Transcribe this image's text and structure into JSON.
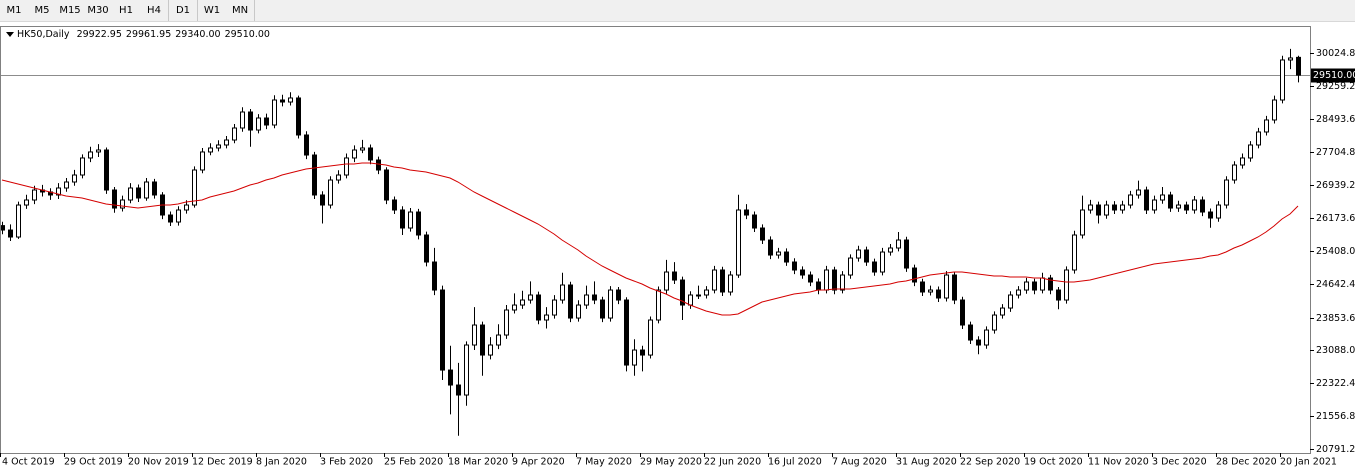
{
  "toolbar": [
    "M1",
    "M5",
    "M15",
    "M30",
    "H1",
    "H4",
    "D1",
    "W1",
    "MN"
  ],
  "chart_data": {
    "type": "candlestick",
    "title": "HK50,Daily",
    "ohlc_labels": [
      "29922.95",
      "29961.95",
      "29340.00",
      "29510.00"
    ],
    "candle_colors": {
      "up": "#ffffff",
      "down": "#000000",
      "outline": "#000000"
    },
    "categories": [
      "4 Oct 2019",
      null,
      null,
      null,
      null,
      null,
      null,
      null,
      "29 Oct 2019",
      null,
      null,
      null,
      null,
      null,
      null,
      null,
      "20 Nov 2019",
      null,
      null,
      null,
      null,
      null,
      null,
      null,
      "12 Dec 2019",
      null,
      null,
      null,
      null,
      null,
      null,
      null,
      "8 Jan 2020",
      null,
      null,
      null,
      null,
      null,
      null,
      null,
      "3 Feb 2020",
      null,
      null,
      null,
      null,
      null,
      null,
      null,
      "25 Feb 2020",
      null,
      null,
      null,
      null,
      null,
      null,
      null,
      "18 Mar 2020",
      null,
      null,
      null,
      null,
      null,
      null,
      null,
      "9 Apr 2020",
      null,
      null,
      null,
      null,
      null,
      null,
      null,
      "7 May 2020",
      null,
      null,
      null,
      null,
      null,
      null,
      null,
      "29 May 2020",
      null,
      null,
      null,
      null,
      null,
      null,
      null,
      "22 Jun 2020",
      null,
      null,
      null,
      null,
      null,
      null,
      null,
      "16 Jul 2020",
      null,
      null,
      null,
      null,
      null,
      null,
      null,
      "7 Aug 2020",
      null,
      null,
      null,
      null,
      null,
      null,
      null,
      "31 Aug 2020",
      null,
      null,
      null,
      null,
      null,
      null,
      null,
      "22 Sep 2020",
      null,
      null,
      null,
      null,
      null,
      null,
      null,
      "19 Oct 2020",
      null,
      null,
      null,
      null,
      null,
      null,
      null,
      "11 Nov 2020",
      null,
      null,
      null,
      null,
      null,
      null,
      null,
      "3 Dec 2020",
      null,
      null,
      null,
      null,
      null,
      null,
      null,
      "28 Dec 2020",
      null,
      null,
      null,
      null,
      null,
      null,
      null,
      "20 Jan 2021",
      null,
      null
    ],
    "candles": [
      [
        26000,
        26090,
        25800,
        25897
      ],
      [
        25897,
        26030,
        25640,
        25734
      ],
      [
        25734,
        26560,
        25690,
        26480
      ],
      [
        26480,
        26720,
        26390,
        26597
      ],
      [
        26597,
        26930,
        26500,
        26830
      ],
      [
        26830,
        26950,
        26680,
        26784
      ],
      [
        26784,
        26870,
        26600,
        26714
      ],
      [
        26714,
        26990,
        26620,
        26877
      ],
      [
        26877,
        27110,
        26790,
        27017
      ],
      [
        27017,
        27300,
        26930,
        27180
      ],
      [
        27180,
        27660,
        27100,
        27577
      ],
      [
        27577,
        27840,
        27480,
        27717
      ],
      [
        27717,
        27900,
        27600,
        27763
      ],
      [
        27763,
        27820,
        26740,
        26830
      ],
      [
        26830,
        26900,
        26300,
        26410
      ],
      [
        26410,
        26700,
        26330,
        26597
      ],
      [
        26597,
        26990,
        26520,
        26877
      ],
      [
        26877,
        26960,
        26550,
        26644
      ],
      [
        26644,
        27110,
        26580,
        27017
      ],
      [
        27017,
        27090,
        26630,
        26714
      ],
      [
        26714,
        26780,
        26150,
        26247
      ],
      [
        26247,
        26330,
        25990,
        26084
      ],
      [
        26084,
        26450,
        26000,
        26364
      ],
      [
        26364,
        26590,
        26280,
        26480
      ],
      [
        26480,
        27380,
        26420,
        27297
      ],
      [
        27297,
        27810,
        27220,
        27717
      ],
      [
        27717,
        27920,
        27640,
        27810
      ],
      [
        27810,
        27990,
        27730,
        27880
      ],
      [
        27880,
        28090,
        27800,
        27996
      ],
      [
        27996,
        28370,
        27920,
        28276
      ],
      [
        28276,
        28760,
        28190,
        28649
      ],
      [
        28649,
        28720,
        27840,
        28229
      ],
      [
        28229,
        28600,
        28150,
        28509
      ],
      [
        28509,
        28610,
        28250,
        28346
      ],
      [
        28346,
        29040,
        28270,
        28929
      ],
      [
        28929,
        29050,
        28780,
        28882
      ],
      [
        28882,
        29110,
        28800,
        28976
      ],
      [
        28976,
        29030,
        28030,
        28113
      ],
      [
        28113,
        28200,
        27550,
        27646
      ],
      [
        27646,
        27720,
        26620,
        26714
      ],
      [
        26714,
        26800,
        26050,
        26480
      ],
      [
        26480,
        27150,
        26400,
        27063
      ],
      [
        27063,
        27290,
        26980,
        27180
      ],
      [
        27180,
        27680,
        27100,
        27577
      ],
      [
        27577,
        27870,
        27480,
        27763
      ],
      [
        27763,
        28000,
        27690,
        27810
      ],
      [
        27810,
        27890,
        27430,
        27530
      ],
      [
        27530,
        27610,
        27200,
        27297
      ],
      [
        27297,
        27360,
        26500,
        26597
      ],
      [
        26597,
        26680,
        26270,
        26364
      ],
      [
        26364,
        26450,
        25780,
        25944
      ],
      [
        25944,
        26410,
        25860,
        26317
      ],
      [
        26317,
        26390,
        25680,
        25781
      ],
      [
        25781,
        25860,
        25050,
        25151
      ],
      [
        25151,
        25480,
        24380,
        24498
      ],
      [
        24498,
        24600,
        22400,
        22632
      ],
      [
        22632,
        23200,
        21600,
        22283
      ],
      [
        22283,
        22800,
        21100,
        22050
      ],
      [
        22050,
        23300,
        21800,
        23216
      ],
      [
        23216,
        24100,
        23100,
        23682
      ],
      [
        23682,
        23760,
        22500,
        22982
      ],
      [
        22982,
        23400,
        22880,
        23216
      ],
      [
        23216,
        23700,
        23120,
        23449
      ],
      [
        23449,
        24150,
        23360,
        24032
      ],
      [
        24032,
        24420,
        23950,
        24148
      ],
      [
        24148,
        24480,
        24060,
        24265
      ],
      [
        24265,
        24700,
        24180,
        24382
      ],
      [
        24382,
        24460,
        23700,
        23799
      ],
      [
        23799,
        24100,
        23600,
        23915
      ],
      [
        23915,
        24380,
        23830,
        24265
      ],
      [
        24265,
        24900,
        24180,
        24615
      ],
      [
        24615,
        24690,
        23750,
        23845
      ],
      [
        23845,
        24260,
        23760,
        24148
      ],
      [
        24148,
        24600,
        24060,
        24382
      ],
      [
        24382,
        24700,
        24170,
        24265
      ],
      [
        24265,
        24340,
        23750,
        23845
      ],
      [
        23845,
        24590,
        23760,
        24498
      ],
      [
        24498,
        24570,
        24170,
        24265
      ],
      [
        24265,
        24330,
        22600,
        22749
      ],
      [
        22749,
        23350,
        22500,
        23099
      ],
      [
        23099,
        23200,
        22600,
        22982
      ],
      [
        22982,
        23880,
        22900,
        23799
      ],
      [
        23799,
        24580,
        23720,
        24498
      ],
      [
        24498,
        25200,
        24410,
        24918
      ],
      [
        24918,
        25150,
        24640,
        24731
      ],
      [
        24731,
        24810,
        23800,
        24148
      ],
      [
        24148,
        24470,
        24060,
        24382
      ],
      [
        24382,
        24600,
        24290,
        24382
      ],
      [
        24382,
        24590,
        24300,
        24498
      ],
      [
        24498,
        25060,
        24420,
        24965
      ],
      [
        24965,
        25040,
        24360,
        24452
      ],
      [
        24452,
        24940,
        24370,
        24848
      ],
      [
        24848,
        26720,
        24780,
        26364
      ],
      [
        26364,
        26500,
        26150,
        26247
      ],
      [
        26247,
        26330,
        25850,
        25944
      ],
      [
        25944,
        26030,
        25570,
        25664
      ],
      [
        25664,
        25750,
        25220,
        25314
      ],
      [
        25314,
        25480,
        25230,
        25384
      ],
      [
        25384,
        25470,
        25060,
        25151
      ],
      [
        25151,
        25240,
        24870,
        24965
      ],
      [
        24965,
        25050,
        24760,
        24848
      ],
      [
        24848,
        24930,
        24590,
        24685
      ],
      [
        24685,
        24770,
        24400,
        24498
      ],
      [
        24498,
        25060,
        24420,
        24965
      ],
      [
        24965,
        25040,
        24400,
        24498
      ],
      [
        24498,
        24940,
        24420,
        24848
      ],
      [
        24848,
        25330,
        24760,
        25244
      ],
      [
        25244,
        25530,
        25160,
        25431
      ],
      [
        25431,
        25510,
        25060,
        25151
      ],
      [
        25151,
        25230,
        24830,
        24918
      ],
      [
        24918,
        25480,
        24840,
        25384
      ],
      [
        25384,
        25570,
        25300,
        25478
      ],
      [
        25478,
        25850,
        25400,
        25664
      ],
      [
        25664,
        25740,
        24920,
        25011
      ],
      [
        25011,
        25090,
        24590,
        24685
      ],
      [
        24685,
        24760,
        24360,
        24452
      ],
      [
        24452,
        24600,
        24370,
        24498
      ],
      [
        24498,
        24580,
        24220,
        24312
      ],
      [
        24312,
        24940,
        24230,
        24848
      ],
      [
        24848,
        24920,
        24170,
        24265
      ],
      [
        24265,
        24340,
        23590,
        23682
      ],
      [
        23682,
        23760,
        23240,
        23332
      ],
      [
        23332,
        23420,
        23000,
        23216
      ],
      [
        23216,
        23650,
        23130,
        23565
      ],
      [
        23565,
        24000,
        23480,
        23915
      ],
      [
        23915,
        24170,
        23830,
        24078
      ],
      [
        24078,
        24470,
        23990,
        24382
      ],
      [
        24382,
        24590,
        24300,
        24498
      ],
      [
        24498,
        24780,
        24410,
        24685
      ],
      [
        24685,
        24760,
        24400,
        24498
      ],
      [
        24498,
        24900,
        24420,
        24778
      ],
      [
        24778,
        24850,
        24400,
        24498
      ],
      [
        24498,
        24570,
        24050,
        24265
      ],
      [
        24265,
        25050,
        24180,
        24965
      ],
      [
        24965,
        25880,
        24880,
        25781
      ],
      [
        25781,
        26700,
        25700,
        26364
      ],
      [
        26364,
        26600,
        26280,
        26480
      ],
      [
        26480,
        26560,
        26050,
        26247
      ],
      [
        26247,
        26580,
        26160,
        26480
      ],
      [
        26480,
        26570,
        26270,
        26364
      ],
      [
        26364,
        26580,
        26280,
        26480
      ],
      [
        26480,
        26810,
        26400,
        26714
      ],
      [
        26714,
        27050,
        26630,
        26830
      ],
      [
        26830,
        26910,
        26270,
        26364
      ],
      [
        26364,
        26700,
        26280,
        26597
      ],
      [
        26597,
        26900,
        26510,
        26714
      ],
      [
        26714,
        26790,
        26320,
        26410
      ],
      [
        26410,
        26580,
        26320,
        26480
      ],
      [
        26480,
        26560,
        26270,
        26364
      ],
      [
        26364,
        26690,
        26280,
        26597
      ],
      [
        26597,
        26680,
        26220,
        26317
      ],
      [
        26317,
        26400,
        25950,
        26177
      ],
      [
        26177,
        26570,
        26090,
        26480
      ],
      [
        26480,
        27150,
        26400,
        27063
      ],
      [
        27063,
        27500,
        26980,
        27413
      ],
      [
        27413,
        27680,
        27330,
        27577
      ],
      [
        27577,
        27970,
        27490,
        27880
      ],
      [
        27880,
        28280,
        27800,
        28183
      ],
      [
        28183,
        28560,
        28100,
        28463
      ],
      [
        28463,
        29030,
        28380,
        28929
      ],
      [
        28929,
        29960,
        28850,
        29862
      ],
      [
        29862,
        30120,
        29650,
        29909
      ],
      [
        29922.95,
        29961.95,
        29340,
        29510
      ]
    ],
    "series": [
      {
        "color": "#d40000",
        "values": [
          27063,
          27017,
          26970,
          26923,
          26877,
          26830,
          26784,
          26737,
          26690,
          26667,
          26644,
          26597,
          26550,
          26504,
          26480,
          26457,
          26434,
          26410,
          26434,
          26457,
          26480,
          26480,
          26504,
          26550,
          26574,
          26597,
          26667,
          26714,
          26760,
          26807,
          26877,
          26947,
          26993,
          27063,
          27110,
          27180,
          27227,
          27273,
          27320,
          27343,
          27367,
          27390,
          27413,
          27436,
          27436,
          27460,
          27460,
          27436,
          27413,
          27367,
          27343,
          27297,
          27273,
          27250,
          27203,
          27157,
          27110,
          27017,
          26900,
          26784,
          26690,
          26597,
          26504,
          26410,
          26317,
          26224,
          26131,
          26037,
          25921,
          25804,
          25664,
          25548,
          25431,
          25291,
          25174,
          25058,
          24965,
          24871,
          24778,
          24708,
          24638,
          24545,
          24475,
          24405,
          24312,
          24242,
          24148,
          24078,
          24009,
          23962,
          23915,
          23915,
          23939,
          24032,
          24125,
          24218,
          24265,
          24312,
          24358,
          24405,
          24428,
          24452,
          24498,
          24498,
          24522,
          24522,
          24522,
          24545,
          24568,
          24592,
          24615,
          24638,
          24685,
          24708,
          24755,
          24801,
          24848,
          24871,
          24894,
          24918,
          24918,
          24894,
          24871,
          24848,
          24824,
          24824,
          24801,
          24801,
          24801,
          24778,
          24778,
          24731,
          24708,
          24685,
          24685,
          24708,
          24731,
          24778,
          24824,
          24871,
          24918,
          24965,
          25011,
          25058,
          25104,
          25128,
          25151,
          25174,
          25198,
          25221,
          25244,
          25291,
          25314,
          25384,
          25478,
          25548,
          25641,
          25734,
          25851,
          25991,
          26154,
          26271,
          26457
        ]
      }
    ],
    "price_line": {
      "value": 29510,
      "label": "29510.00",
      "color": "#8c8c8c"
    },
    "ylim": [
      20698,
      30631
    ],
    "yticks": [
      20791.21,
      {
        "value": 21556.8,
        "label": "21556.80"
      },
      {
        "value": 22322.4,
        "label": "22322.40"
      },
      {
        "value": 23088,
        "label": "23088.00"
      },
      {
        "value": 23853.6,
        "label": "23853.60"
      },
      {
        "value": 24642.4,
        "label": "24642.40"
      },
      {
        "value": 25408,
        "label": "25408.00"
      },
      {
        "value": 26173.6,
        "label": "26173.60"
      },
      {
        "value": 26939.2,
        "label": "26939.20"
      },
      {
        "value": 27704.8,
        "label": "27704.80"
      },
      {
        "value": 28493.6,
        "label": "28493.60"
      },
      {
        "value": 29259.2,
        "label": "29259.20"
      },
      {
        "value": 30024.8,
        "label": "30024.80"
      }
    ],
    "grid": false
  }
}
